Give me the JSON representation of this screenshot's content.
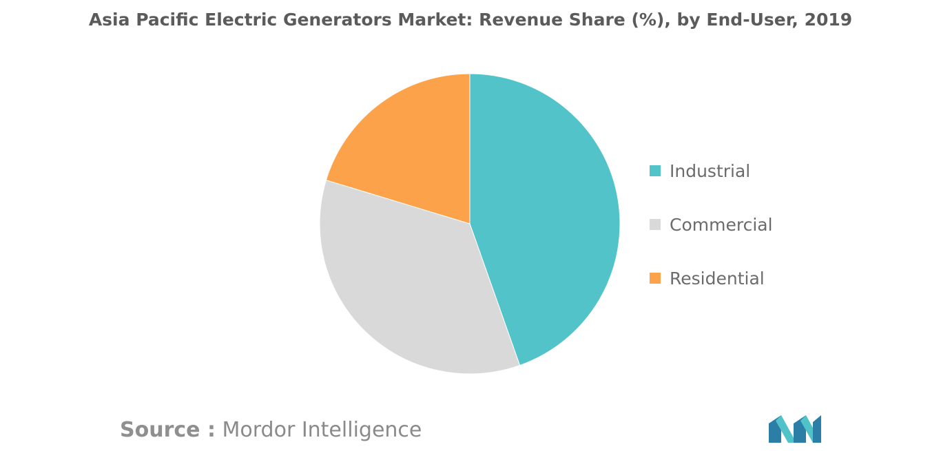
{
  "colors": {
    "industrial": "#52c4c9",
    "commercial": "#d9d9d9",
    "residential": "#fba24b"
  },
  "chart_data": {
    "type": "pie",
    "title": "Asia Pacific Electric Generators Market: Revenue Share (%), by End-User, 2019",
    "legend_position": "right",
    "slices": [
      {
        "label": "Industrial",
        "value": 44.6,
        "color": "#52c4c9"
      },
      {
        "label": "Commercial",
        "value": 35.1,
        "color": "#d9d9d9"
      },
      {
        "label": "Residential",
        "value": 20.3,
        "color": "#fba24b"
      }
    ]
  },
  "source": {
    "label": "Source :",
    "text": "Mordor Intelligence"
  },
  "logo": {
    "icon": "mordor-intelligence-logo-icon"
  }
}
